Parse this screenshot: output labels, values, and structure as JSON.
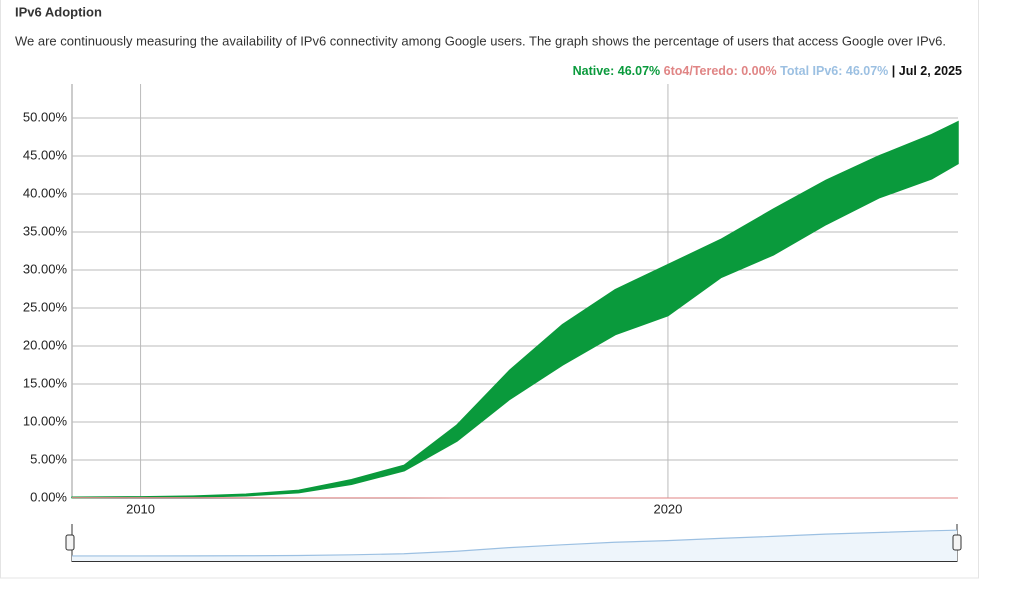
{
  "chart_data": {
    "type": "area",
    "title": "IPv6 Adoption",
    "subtitle": "We are continuously measuring the availability of IPv6 connectivity among Google users. The graph shows the percentage of users that access Google over IPv6.",
    "date_label": "| Jul 2, 2025",
    "x": [
      2008.7,
      2010,
      2011,
      2012,
      2013,
      2014,
      2015,
      2016,
      2017,
      2018,
      2019,
      2020,
      2021,
      2022,
      2023,
      2024,
      2025,
      2025.5
    ],
    "series": [
      {
        "name": "Native: 46.07%",
        "color": "#0a9a3c",
        "values": [
          0.1,
          0.15,
          0.25,
          0.5,
          1.0,
          2.4,
          4.3,
          9.6,
          16.8,
          22.8,
          27.4,
          30.7,
          34,
          38,
          41.8,
          45,
          47.8,
          49.5
        ],
        "low": [
          0.05,
          0.1,
          0.15,
          0.3,
          0.7,
          1.8,
          3.6,
          7.5,
          13,
          17.5,
          21.5,
          24,
          29,
          32,
          36,
          39.5,
          42,
          44
        ]
      },
      {
        "name": "6to4/Teredo: 0.00%",
        "color": "#e08585",
        "values": [
          0.05,
          0.05,
          0.05,
          0.03,
          0.02,
          0.01,
          0.01,
          0,
          0,
          0,
          0,
          0,
          0,
          0,
          0,
          0,
          0,
          0
        ]
      },
      {
        "name": "Total IPv6: 46.07%",
        "color": "#9cc0e2",
        "values": [
          0.1,
          0.12,
          0.2,
          0.4,
          0.85,
          2.1,
          4,
          8.5,
          15,
          20,
          24.5,
          27.5,
          31.5,
          35,
          39,
          42,
          45,
          46.07
        ]
      }
    ],
    "xlim": [
      2008.7,
      2025.5
    ],
    "xticks": [
      2010,
      2020
    ],
    "ylim": [
      0,
      50
    ],
    "yticks": [
      {
        "value": 0,
        "label": "0.00%"
      },
      {
        "value": 5,
        "label": "5.00%"
      },
      {
        "value": 10,
        "label": "10.00%"
      },
      {
        "value": 15,
        "label": "15.00%"
      },
      {
        "value": 20,
        "label": "20.00%"
      },
      {
        "value": 25,
        "label": "25.00%"
      },
      {
        "value": 30,
        "label": "30.00%"
      },
      {
        "value": 35,
        "label": "35.00%"
      },
      {
        "value": 40,
        "label": "40.00%"
      },
      {
        "value": 45,
        "label": "45.00%"
      },
      {
        "value": 50,
        "label": "50.00%"
      }
    ],
    "grid": true
  }
}
